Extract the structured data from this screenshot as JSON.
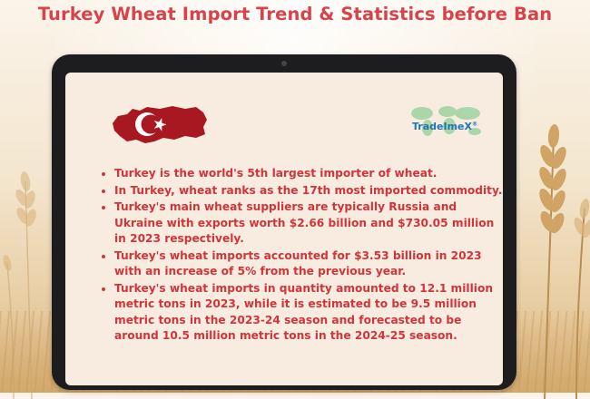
{
  "title": "Turkey Wheat Import Trend & Statistics before Ban",
  "logo": {
    "text": "TradeImeX",
    "registered_mark": "®"
  },
  "icons": {
    "flag": "turkey-flag-map-icon",
    "logo": "tradeimex-logo-icon"
  },
  "colors": {
    "title": "#d8434a",
    "text": "#d0353a",
    "flag": "#a81820",
    "screen": "#f8ece0",
    "tablet": "#1d1d1f",
    "logo": "#1d76b4"
  },
  "facts": [
    "Turkey is the world's 5th largest importer of wheat.",
    "In Turkey, wheat ranks as the 17th most imported commodity.",
    "Turkey's main wheat suppliers are typically Russia and Ukraine with exports worth $2.66 billion and $730.05 million in 2023 respectively.",
    "Turkey's wheat imports accounted for $3.53 billion in 2023 with an increase of 5% from the previous year.",
    "Turkey's wheat imports in quantity amounted to 12.1 million metric tons in 2023, while it is estimated to be 9.5 million metric tons in the 2023-24 season and forecasted to be around 10.5 million metric tons in the 2024-25 season."
  ]
}
